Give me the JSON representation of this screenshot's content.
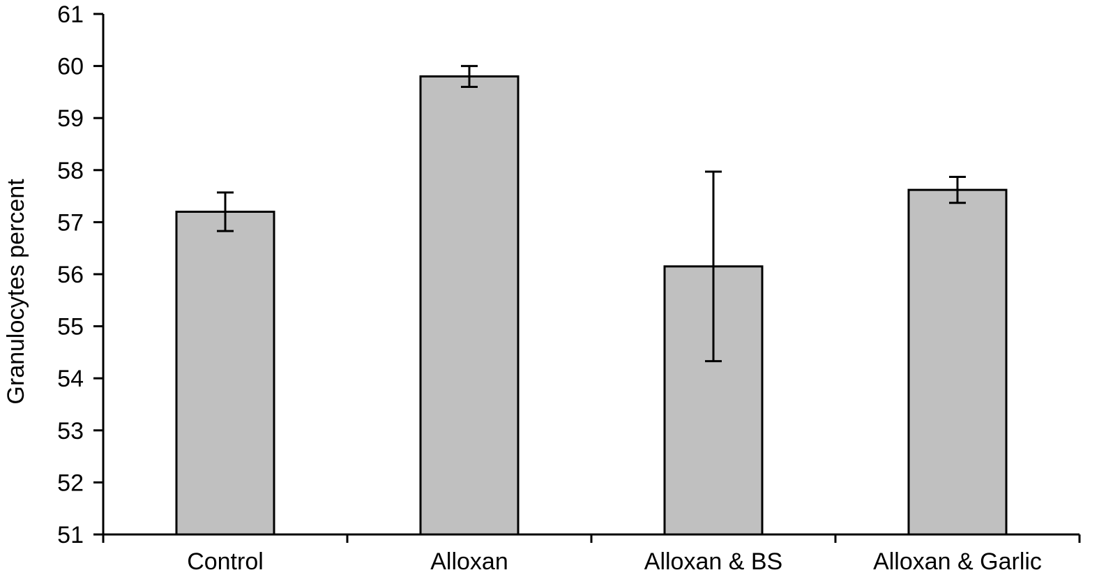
{
  "chart_data": {
    "type": "bar",
    "title": "",
    "xlabel": "",
    "ylabel": "Granulocytes percent",
    "categories": [
      "Control",
      "Alloxan",
      "Alloxan & BS",
      "Alloxan & Garlic"
    ],
    "values": [
      57.2,
      59.8,
      56.15,
      57.62
    ],
    "error": [
      0.37,
      0.2,
      1.82,
      0.25
    ],
    "ylim": [
      51,
      61
    ],
    "yticks": [
      "51",
      "52",
      "53",
      "54",
      "55",
      "56",
      "57",
      "58",
      "59",
      "60",
      "61"
    ],
    "grid": false,
    "legend": "none",
    "colors": {
      "bar_fill": "#c0c0c0",
      "bar_stroke": "#000000",
      "axis": "#000000"
    }
  }
}
